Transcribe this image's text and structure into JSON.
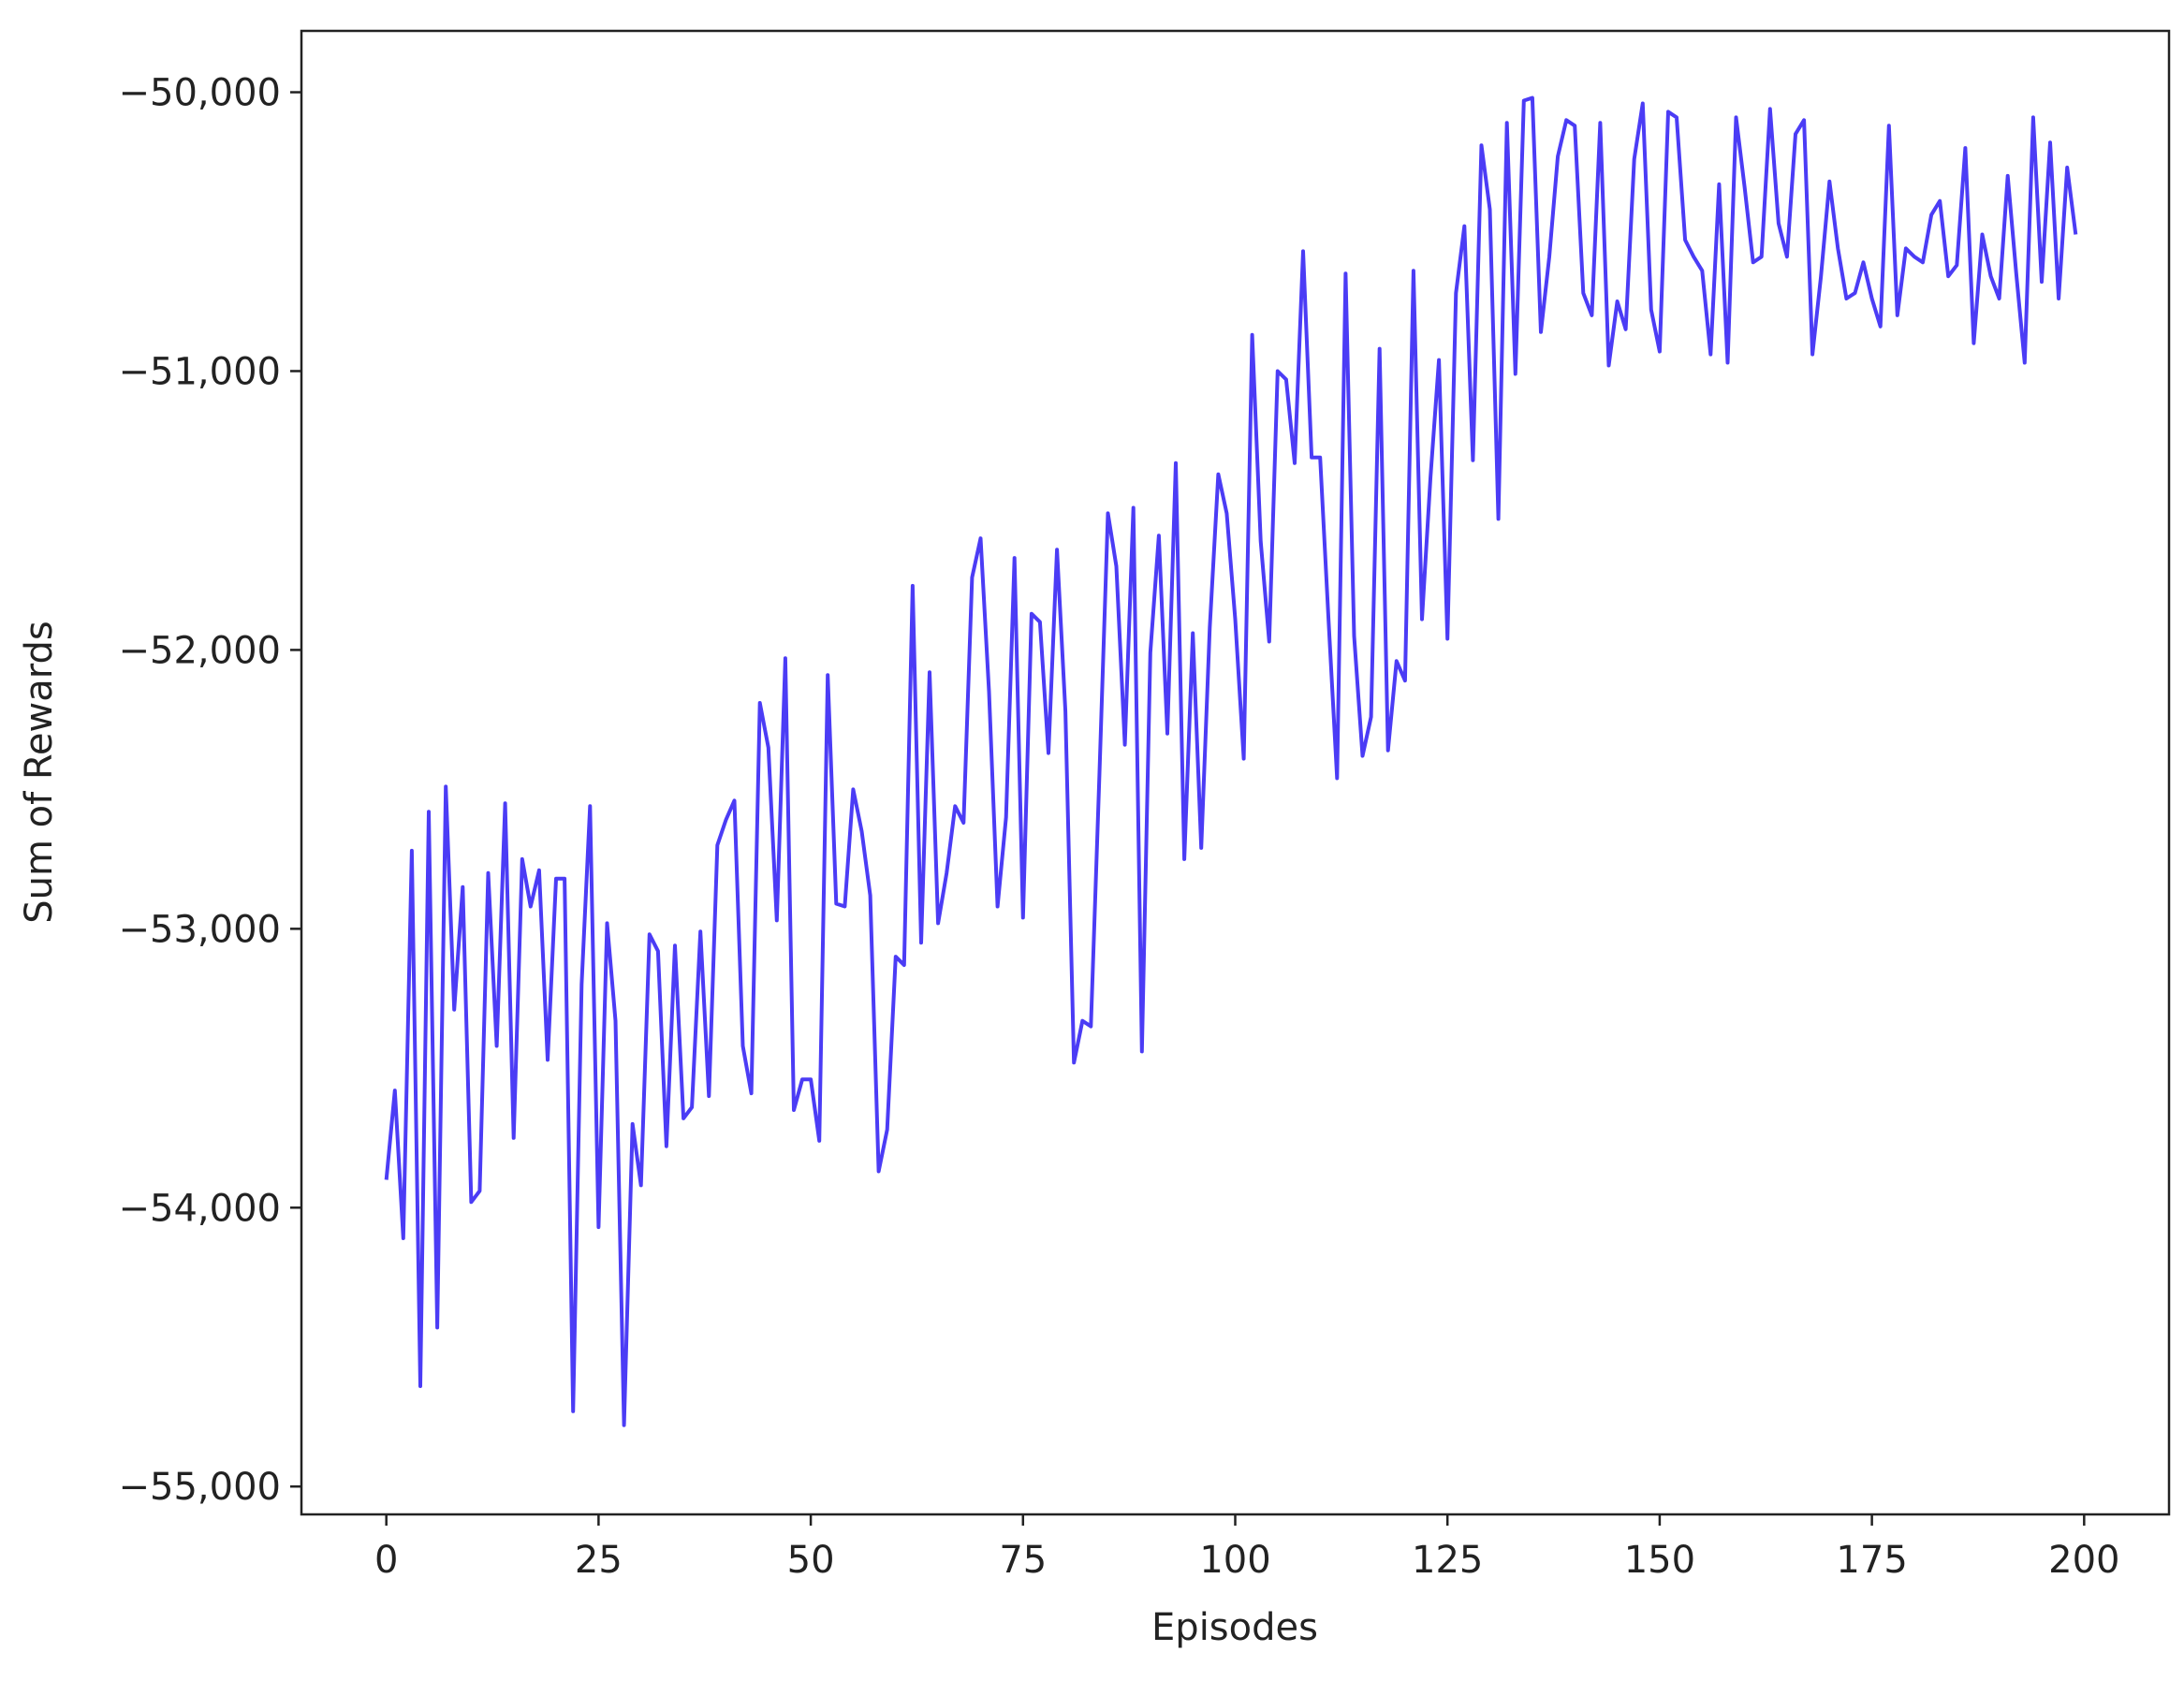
{
  "chart_data": {
    "type": "line",
    "title": "",
    "xlabel": "Episodes",
    "ylabel": "Sum of Rewards",
    "xlim": [
      -10,
      210
    ],
    "ylim": [
      -55100,
      -49780
    ],
    "grid": false,
    "xticks": [
      0,
      25,
      50,
      75,
      100,
      125,
      150,
      175,
      200
    ],
    "xtick_labels": [
      "0",
      "25",
      "50",
      "75",
      "100",
      "125",
      "150",
      "175",
      "200"
    ],
    "yticks": [
      -55000,
      -54000,
      -53000,
      -52000,
      -51000,
      -50000
    ],
    "ytick_labels": [
      "−55,000",
      "−54,000",
      "−53,000",
      "−52,000",
      "−51,000",
      "−50,000"
    ],
    "series": [
      {
        "color": "#4b3cf5",
        "x": [
          0,
          1,
          2,
          3,
          4,
          5,
          6,
          7,
          8,
          9,
          10,
          11,
          12,
          13,
          14,
          15,
          16,
          17,
          18,
          19,
          20,
          21,
          22,
          23,
          24,
          25,
          26,
          27,
          28,
          29,
          30,
          31,
          32,
          33,
          34,
          35,
          36,
          37,
          38,
          39,
          40,
          41,
          42,
          43,
          44,
          45,
          46,
          47,
          48,
          49,
          50,
          51,
          52,
          53,
          54,
          55,
          56,
          57,
          58,
          59,
          60,
          61,
          62,
          63,
          64,
          65,
          66,
          67,
          68,
          69,
          70,
          71,
          72,
          73,
          74,
          75,
          76,
          77,
          78,
          79,
          80,
          81,
          82,
          83,
          84,
          85,
          86,
          87,
          88,
          89,
          90,
          91,
          92,
          93,
          94,
          95,
          96,
          97,
          98,
          99,
          100,
          101,
          102,
          103,
          104,
          105,
          106,
          107,
          108,
          109,
          110,
          111,
          112,
          113,
          114,
          115,
          116,
          117,
          118,
          119,
          120,
          121,
          122,
          123,
          124,
          125,
          126,
          127,
          128,
          129,
          130,
          131,
          132,
          133,
          134,
          135,
          136,
          137,
          138,
          139,
          140,
          141,
          142,
          143,
          144,
          145,
          146,
          147,
          148,
          149,
          150,
          151,
          152,
          153,
          154,
          155,
          156,
          157,
          158,
          159,
          160,
          161,
          162,
          163,
          164,
          165,
          166,
          167,
          168,
          169,
          170,
          171,
          172,
          173,
          174,
          175,
          176,
          177,
          178,
          179,
          180,
          181,
          182,
          183,
          184,
          185,
          186,
          187,
          188,
          189,
          190,
          191,
          192,
          193,
          194,
          195,
          196,
          197,
          198,
          199
        ],
        "y": [
          -53900,
          -53580,
          -54110,
          -52720,
          -54640,
          -52580,
          -54430,
          -52490,
          -53290,
          -52850,
          -53980,
          -53940,
          -52800,
          -53420,
          -52550,
          -53750,
          -52750,
          -52920,
          -52790,
          -53470,
          -52820,
          -52820,
          -54730,
          -53200,
          -52560,
          -54070,
          -52980,
          -53330,
          -54780,
          -53700,
          -53920,
          -53020,
          -53080,
          -53780,
          -53060,
          -53680,
          -53640,
          -53010,
          -53600,
          -52700,
          -52610,
          -52540,
          -53420,
          -53590,
          -52190,
          -52350,
          -52970,
          -52030,
          -53650,
          -53540,
          -53540,
          -53760,
          -52090,
          -52910,
          -52920,
          -52500,
          -52650,
          -52880,
          -53870,
          -53720,
          -53100,
          -53130,
          -51770,
          -53050,
          -52080,
          -52980,
          -52800,
          -52560,
          -52620,
          -51740,
          -51600,
          -52150,
          -52920,
          -52600,
          -51670,
          -52960,
          -51870,
          -51900,
          -52370,
          -51640,
          -52220,
          -53480,
          -53330,
          -53350,
          -52450,
          -51510,
          -51700,
          -52340,
          -51490,
          -53440,
          -52010,
          -51590,
          -52300,
          -51330,
          -52750,
          -51940,
          -52710,
          -51920,
          -51370,
          -51510,
          -51890,
          -52390,
          -50870,
          -51610,
          -51970,
          -51000,
          -51030,
          -51330,
          -50570,
          -51310,
          -51310,
          -51900,
          -52460,
          -50650,
          -51950,
          -52380,
          -52240,
          -50920,
          -52360,
          -52040,
          -52110,
          -50640,
          -51890,
          -51380,
          -50960,
          -51960,
          -50720,
          -50480,
          -51320,
          -50190,
          -50420,
          -51530,
          -50110,
          -51010,
          -50030,
          -50020,
          -50860,
          -50590,
          -50230,
          -50100,
          -50120,
          -50720,
          -50800,
          -50110,
          -50980,
          -50750,
          -50850,
          -50240,
          -50040,
          -50780,
          -50930,
          -50070,
          -50090,
          -50530,
          -50590,
          -50640,
          -50940,
          -50330,
          -50970,
          -50090,
          -50340,
          -50610,
          -50590,
          -50060,
          -50470,
          -50590,
          -50150,
          -50100,
          -50940,
          -50660,
          -50320,
          -50560,
          -50740,
          -50720,
          -50610,
          -50740,
          -50840,
          -50120,
          -50800,
          -50560,
          -50590,
          -50610,
          -50440,
          -50390,
          -50660,
          -50620,
          -50200,
          -50900,
          -50510,
          -50660,
          -50740,
          -50300,
          -50650,
          -50970,
          -50090,
          -50680,
          -50180,
          -50740,
          -50270,
          -50510
        ]
      }
    ]
  }
}
